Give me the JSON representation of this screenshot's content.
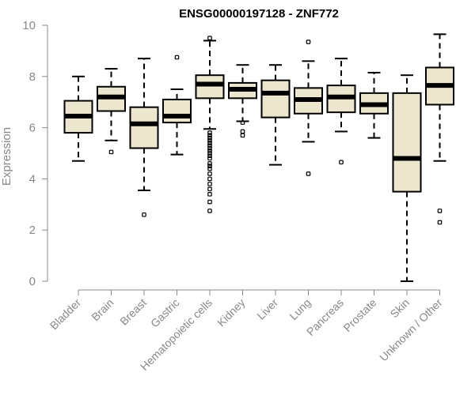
{
  "chart_data": {
    "type": "boxplot",
    "title": "ENSG00000197128 - ZNF772",
    "ylabel": "Expression",
    "xlabel": "",
    "ylim": [
      0,
      10
    ],
    "yticks": [
      0,
      2,
      4,
      6,
      8,
      10
    ],
    "grid": false,
    "box_fill": "#ede6cf",
    "categories": [
      "Bladder",
      "Brain",
      "Breast",
      "Gastric",
      "Hematopoietic cells",
      "Kidney",
      "Liver",
      "Lung",
      "Pancreas",
      "Prostate",
      "Skin",
      "Unknown / Other"
    ],
    "boxes": [
      {
        "whislo": 4.7,
        "q1": 5.8,
        "med": 6.45,
        "q3": 7.05,
        "whishi": 8.0,
        "fliers": []
      },
      {
        "whislo": 5.5,
        "q1": 6.65,
        "med": 7.2,
        "q3": 7.6,
        "whishi": 8.3,
        "fliers": [
          5.05
        ]
      },
      {
        "whislo": 3.55,
        "q1": 5.2,
        "med": 6.15,
        "q3": 6.8,
        "whishi": 8.7,
        "fliers": [
          2.6
        ]
      },
      {
        "whislo": 4.95,
        "q1": 6.2,
        "med": 6.45,
        "q3": 7.1,
        "whishi": 7.5,
        "fliers": [
          8.75
        ]
      },
      {
        "whislo": 5.95,
        "q1": 7.15,
        "med": 7.7,
        "q3": 8.05,
        "whishi": 9.4,
        "fliers": [
          9.5,
          5.8,
          5.7,
          5.6,
          5.5,
          5.4,
          5.3,
          5.2,
          5.1,
          5.0,
          4.9,
          4.8,
          4.6,
          4.5,
          4.4,
          4.2,
          4.0,
          3.8,
          3.6,
          3.4,
          3.1,
          2.75
        ]
      },
      {
        "whislo": 6.25,
        "q1": 7.15,
        "med": 7.5,
        "q3": 7.75,
        "whishi": 8.45,
        "fliers": [
          6.2,
          5.85,
          5.7
        ]
      },
      {
        "whislo": 4.55,
        "q1": 6.4,
        "med": 7.35,
        "q3": 7.85,
        "whishi": 8.45,
        "fliers": []
      },
      {
        "whislo": 5.45,
        "q1": 6.55,
        "med": 7.1,
        "q3": 7.55,
        "whishi": 8.6,
        "fliers": [
          9.35,
          4.2
        ]
      },
      {
        "whislo": 5.85,
        "q1": 6.6,
        "med": 7.2,
        "q3": 7.65,
        "whishi": 8.7,
        "fliers": [
          4.65
        ]
      },
      {
        "whislo": 5.6,
        "q1": 6.55,
        "med": 6.9,
        "q3": 7.35,
        "whishi": 8.15,
        "fliers": []
      },
      {
        "whislo": 0.0,
        "q1": 3.5,
        "med": 4.8,
        "q3": 7.35,
        "whishi": 8.05,
        "fliers": []
      },
      {
        "whislo": 4.7,
        "q1": 6.9,
        "med": 7.65,
        "q3": 8.35,
        "whishi": 9.65,
        "fliers": [
          2.75,
          2.3
        ]
      }
    ]
  }
}
